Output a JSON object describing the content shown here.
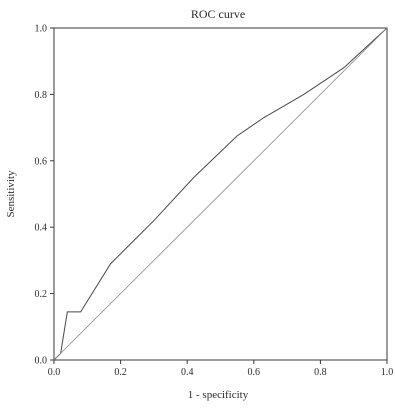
{
  "chart_data": {
    "type": "line",
    "title": "ROC curve",
    "xlabel": "1 - specificity",
    "ylabel": "Sensitivity",
    "xlim": [
      0.0,
      1.0
    ],
    "ylim": [
      0.0,
      1.0
    ],
    "x_ticks": [
      "0.0",
      "0.2",
      "0.4",
      "0.6",
      "0.8",
      "1.0"
    ],
    "y_ticks": [
      "0.0",
      "0.2",
      "0.4",
      "0.6",
      "0.8",
      "1.0"
    ],
    "grid": false,
    "legend": "none",
    "series": [
      {
        "x": [
          0.0,
          0.02,
          0.04,
          0.08,
          0.17,
          0.3,
          0.42,
          0.55,
          0.63,
          0.75,
          0.87,
          1.0
        ],
        "y": [
          0.0,
          0.02,
          0.145,
          0.145,
          0.29,
          0.42,
          0.55,
          0.675,
          0.73,
          0.8,
          0.88,
          1.0
        ],
        "color": "#4a4a4a"
      },
      {
        "x": [
          0.0,
          1.0
        ],
        "y": [
          0.0,
          1.0
        ],
        "color": "#8a8a8a"
      }
    ]
  }
}
